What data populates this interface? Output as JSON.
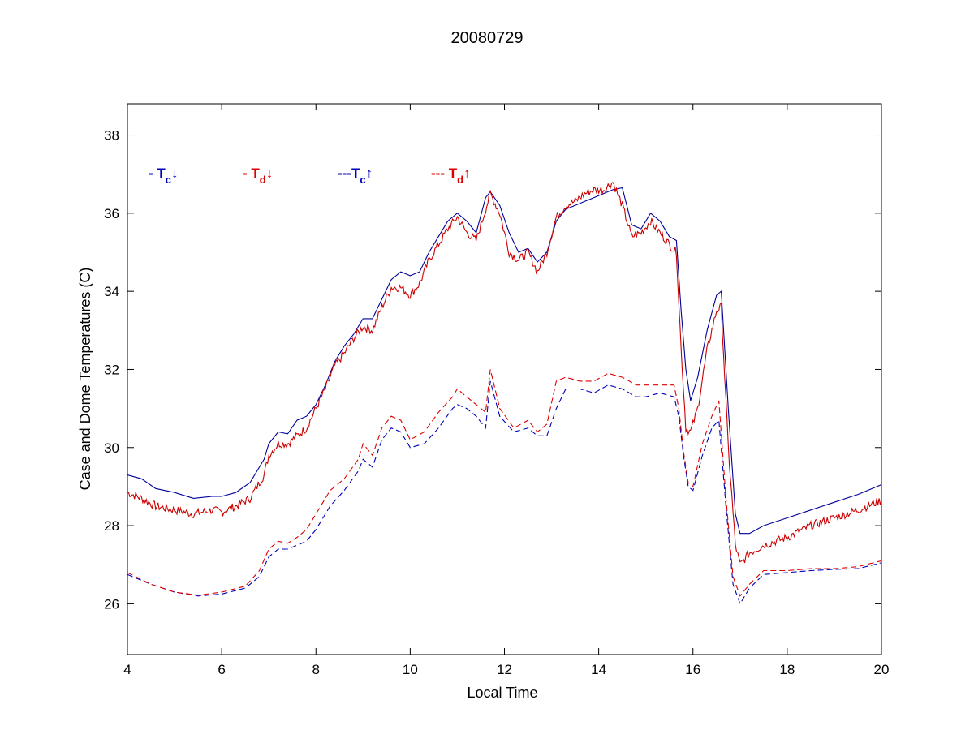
{
  "chart_data": {
    "type": "line",
    "title": "20080729",
    "xlabel": "Local Time",
    "ylabel": "Case and Dome Temperatures (C)",
    "xlim": [
      4,
      20
    ],
    "ylim": [
      24.7,
      38.8
    ],
    "xticks": [
      4,
      6,
      8,
      10,
      12,
      14,
      16,
      18,
      20
    ],
    "yticks": [
      26,
      28,
      30,
      32,
      34,
      36,
      38
    ],
    "grid": false,
    "legend_placement": "top-left",
    "legend": [
      {
        "prefix": "- T",
        "sub": "c",
        "arrow": "↓",
        "color": "#0000bb"
      },
      {
        "prefix": "- T",
        "sub": "d",
        "arrow": "↓",
        "color": "#dd0000"
      },
      {
        "prefix": "---T",
        "sub": "c",
        "arrow": "↑",
        "color": "#0000bb"
      },
      {
        "prefix": "--- T",
        "sub": "d",
        "arrow": "↑",
        "color": "#dd0000"
      }
    ],
    "series": [
      {
        "label": "Tc down",
        "color": "#000099",
        "dashed": false,
        "noisy": false,
        "x": [
          4.0,
          4.3,
          4.6,
          5.0,
          5.4,
          5.8,
          6.0,
          6.3,
          6.6,
          6.9,
          7.0,
          7.2,
          7.4,
          7.6,
          7.8,
          8.0,
          8.2,
          8.4,
          8.6,
          8.8,
          9.0,
          9.2,
          9.4,
          9.6,
          9.8,
          10.0,
          10.2,
          10.4,
          10.6,
          10.8,
          11.0,
          11.2,
          11.4,
          11.6,
          11.7,
          11.9,
          12.1,
          12.3,
          12.5,
          12.7,
          12.9,
          13.1,
          13.3,
          13.5,
          13.7,
          13.9,
          14.1,
          14.3,
          14.5,
          14.7,
          14.9,
          15.1,
          15.3,
          15.5,
          15.65,
          15.75,
          15.85,
          15.95,
          16.1,
          16.3,
          16.5,
          16.6,
          16.75,
          16.9,
          17.0,
          17.2,
          17.5,
          18.0,
          18.5,
          19.0,
          19.5,
          20.0
        ],
        "y": [
          29.3,
          29.2,
          28.95,
          28.85,
          28.7,
          28.75,
          28.75,
          28.85,
          29.1,
          29.7,
          30.1,
          30.4,
          30.35,
          30.7,
          30.8,
          31.1,
          31.6,
          32.2,
          32.6,
          32.9,
          33.3,
          33.3,
          33.8,
          34.3,
          34.5,
          34.4,
          34.5,
          35.0,
          35.4,
          35.8,
          36.0,
          35.8,
          35.5,
          36.4,
          36.55,
          36.2,
          35.5,
          35.0,
          35.1,
          34.75,
          35.0,
          35.8,
          36.1,
          36.2,
          36.3,
          36.4,
          36.5,
          36.6,
          36.65,
          35.7,
          35.6,
          36.0,
          35.8,
          35.4,
          35.3,
          33.5,
          32.0,
          31.2,
          31.8,
          33.0,
          33.9,
          34.0,
          31.0,
          28.3,
          27.8,
          27.8,
          28.0,
          28.2,
          28.4,
          28.6,
          28.8,
          29.05
        ]
      },
      {
        "label": "Td down",
        "color": "#cc0000",
        "dashed": false,
        "noisy": true,
        "x": [
          4.0,
          4.3,
          4.6,
          5.0,
          5.4,
          5.8,
          6.0,
          6.3,
          6.6,
          6.9,
          7.0,
          7.2,
          7.4,
          7.6,
          7.8,
          8.0,
          8.2,
          8.4,
          8.6,
          8.8,
          9.0,
          9.2,
          9.4,
          9.6,
          9.8,
          10.0,
          10.2,
          10.4,
          10.6,
          10.8,
          11.0,
          11.2,
          11.4,
          11.6,
          11.7,
          11.9,
          12.1,
          12.3,
          12.5,
          12.7,
          12.9,
          13.1,
          13.3,
          13.5,
          13.7,
          13.9,
          14.1,
          14.3,
          14.5,
          14.7,
          14.9,
          15.1,
          15.3,
          15.5,
          15.65,
          15.75,
          15.85,
          15.95,
          16.1,
          16.3,
          16.5,
          16.6,
          16.75,
          16.9,
          17.0,
          17.2,
          17.5,
          18.0,
          18.5,
          19.0,
          19.5,
          20.0
        ],
        "y": [
          28.85,
          28.7,
          28.5,
          28.4,
          28.3,
          28.4,
          28.35,
          28.5,
          28.7,
          29.3,
          29.8,
          30.1,
          30.1,
          30.3,
          30.5,
          31.0,
          31.5,
          32.1,
          32.4,
          32.8,
          33.1,
          33.0,
          33.6,
          34.1,
          34.1,
          33.9,
          34.2,
          34.8,
          35.2,
          35.6,
          35.9,
          35.5,
          35.3,
          36.1,
          36.5,
          36.0,
          35.0,
          34.8,
          35.0,
          34.5,
          35.0,
          35.9,
          36.2,
          36.3,
          36.5,
          36.6,
          36.6,
          36.8,
          36.2,
          35.4,
          35.5,
          35.8,
          35.5,
          35.2,
          35.0,
          32.5,
          30.5,
          30.4,
          31.0,
          32.5,
          33.5,
          33.6,
          30.0,
          27.5,
          27.0,
          27.3,
          27.5,
          27.7,
          28.0,
          28.2,
          28.4,
          28.65
        ]
      },
      {
        "label": "Tc up",
        "color": "#0000bb",
        "dashed": true,
        "noisy": false,
        "x": [
          4.0,
          4.5,
          5.0,
          5.5,
          6.0,
          6.5,
          6.8,
          7.0,
          7.2,
          7.4,
          7.6,
          7.8,
          8.0,
          8.3,
          8.6,
          8.9,
          9.0,
          9.2,
          9.4,
          9.6,
          9.8,
          10.0,
          10.3,
          10.6,
          10.9,
          11.0,
          11.2,
          11.4,
          11.6,
          11.7,
          11.9,
          12.2,
          12.5,
          12.7,
          12.9,
          13.1,
          13.3,
          13.6,
          13.9,
          14.2,
          14.5,
          14.8,
          15.0,
          15.3,
          15.6,
          15.7,
          15.8,
          15.9,
          16.0,
          16.2,
          16.4,
          16.55,
          16.7,
          16.85,
          17.0,
          17.2,
          17.5,
          18.0,
          18.5,
          19.0,
          19.5,
          20.0
        ],
        "y": [
          26.75,
          26.5,
          26.3,
          26.2,
          26.25,
          26.4,
          26.7,
          27.2,
          27.4,
          27.4,
          27.5,
          27.6,
          27.9,
          28.5,
          28.9,
          29.4,
          29.7,
          29.5,
          30.2,
          30.5,
          30.4,
          30.0,
          30.1,
          30.5,
          31.0,
          31.1,
          31.0,
          30.8,
          30.5,
          31.7,
          30.8,
          30.4,
          30.5,
          30.3,
          30.3,
          31.0,
          31.5,
          31.5,
          31.4,
          31.6,
          31.5,
          31.3,
          31.3,
          31.4,
          31.3,
          30.8,
          29.8,
          29.0,
          28.9,
          29.8,
          30.5,
          30.7,
          28.5,
          26.5,
          26.0,
          26.4,
          26.75,
          26.8,
          26.85,
          26.88,
          26.9,
          27.05
        ]
      },
      {
        "label": "Td up",
        "color": "#dd0000",
        "dashed": true,
        "noisy": false,
        "x": [
          4.0,
          4.5,
          5.0,
          5.5,
          6.0,
          6.5,
          6.8,
          7.0,
          7.2,
          7.4,
          7.6,
          7.8,
          8.0,
          8.3,
          8.6,
          8.9,
          9.0,
          9.2,
          9.4,
          9.6,
          9.8,
          10.0,
          10.3,
          10.6,
          10.9,
          11.0,
          11.2,
          11.4,
          11.6,
          11.7,
          11.9,
          12.2,
          12.5,
          12.7,
          12.9,
          13.1,
          13.3,
          13.6,
          13.9,
          14.2,
          14.5,
          14.8,
          15.0,
          15.3,
          15.6,
          15.7,
          15.8,
          15.9,
          16.0,
          16.2,
          16.4,
          16.55,
          16.7,
          16.85,
          17.0,
          17.2,
          17.5,
          18.0,
          18.5,
          19.0,
          19.5,
          20.0
        ],
        "y": [
          26.8,
          26.5,
          26.3,
          26.22,
          26.3,
          26.45,
          26.85,
          27.4,
          27.6,
          27.55,
          27.7,
          27.9,
          28.3,
          28.9,
          29.2,
          29.7,
          30.1,
          29.8,
          30.5,
          30.8,
          30.7,
          30.2,
          30.4,
          30.9,
          31.3,
          31.5,
          31.3,
          31.1,
          30.9,
          32.0,
          31.0,
          30.5,
          30.7,
          30.4,
          30.6,
          31.7,
          31.8,
          31.7,
          31.7,
          31.9,
          31.8,
          31.6,
          31.6,
          31.6,
          31.6,
          31.0,
          29.9,
          29.1,
          29.0,
          30.1,
          30.8,
          31.2,
          28.7,
          26.7,
          26.2,
          26.5,
          26.85,
          26.85,
          26.9,
          26.9,
          26.95,
          27.1
        ]
      }
    ]
  }
}
